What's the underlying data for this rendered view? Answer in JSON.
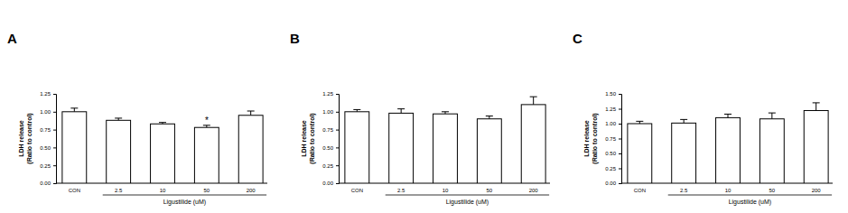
{
  "chart_data": [
    {
      "type": "bar",
      "title": "A",
      "y_label": [
        "LDH release",
        "(Ratio to control)"
      ],
      "x_group_label": "Ligustilide (uM)",
      "categories": [
        "CON",
        "2.5",
        "10",
        "50",
        "200"
      ],
      "values": [
        1.0,
        0.88,
        0.83,
        0.78,
        0.95
      ],
      "errors": [
        0.05,
        0.03,
        0.02,
        0.03,
        0.06
      ],
      "color": "#ffffff",
      "ylim": [
        0,
        1.25
      ],
      "yticks": [
        {
          "value": 0,
          "label": "0.00"
        },
        {
          "value": 0.25,
          "label": "0.25"
        },
        {
          "value": 0.5,
          "label": "0.50"
        },
        {
          "value": 0.75,
          "label": "0.75"
        },
        {
          "value": 1,
          "label": "1.00"
        },
        {
          "value": 1.25,
          "label": "1.25"
        }
      ],
      "annotations": [
        {
          "text": "*",
          "category": "50"
        }
      ]
    },
    {
      "type": "bar",
      "title": "B",
      "y_label": [
        "LDH release",
        "(Ratio to control)"
      ],
      "x_group_label": "Ligustilide (uM)",
      "categories": [
        "CON",
        "2.5",
        "10",
        "50",
        "200"
      ],
      "values": [
        1.0,
        0.98,
        0.97,
        0.9,
        1.1
      ],
      "errors": [
        0.03,
        0.06,
        0.03,
        0.04,
        0.11
      ],
      "color": "#ffffff",
      "ylim": [
        0,
        1.25
      ],
      "yticks": [
        {
          "value": 0,
          "label": "0.00"
        },
        {
          "value": 0.25,
          "label": "0.25"
        },
        {
          "value": 0.5,
          "label": "0.50"
        },
        {
          "value": 0.75,
          "label": "0.75"
        },
        {
          "value": 1,
          "label": "1.00"
        },
        {
          "value": 1.25,
          "label": "1.25"
        }
      ]
    },
    {
      "type": "bar",
      "title": "C",
      "y_label": [
        "LDH release",
        "(Ratio to control)"
      ],
      "x_group_label": "Ligustilide (uM)",
      "categories": [
        "CON",
        "2.5",
        "10",
        "50",
        "200"
      ],
      "values": [
        1.0,
        1.01,
        1.1,
        1.08,
        1.22
      ],
      "errors": [
        0.04,
        0.06,
        0.06,
        0.1,
        0.13
      ],
      "color": "#ffffff",
      "ylim": [
        0,
        1.5
      ],
      "yticks": [
        {
          "value": 0,
          "label": "0.00"
        },
        {
          "value": 0.25,
          "label": "0.25"
        },
        {
          "value": 0.5,
          "label": "0.50"
        },
        {
          "value": 0.75,
          "label": "0.75"
        },
        {
          "value": 1,
          "label": "1.00"
        },
        {
          "value": 1.25,
          "label": "1.25"
        },
        {
          "value": 1.5,
          "label": "1.50"
        }
      ]
    }
  ]
}
